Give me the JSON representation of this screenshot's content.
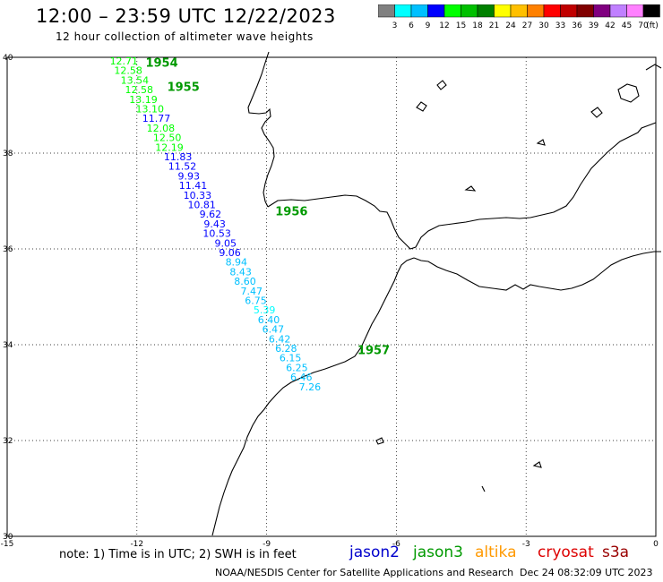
{
  "header": {
    "title": "12:00 – 23:59 UTC 12/22/2023",
    "subtitle": "12 hour collection of altimeter wave heights"
  },
  "colorbar": {
    "colors": [
      "#808080",
      "#00ffff",
      "#00c0ff",
      "#0000ff",
      "#00ff00",
      "#00c000",
      "#008000",
      "#ffff00",
      "#ffc000",
      "#ff8000",
      "#ff0000",
      "#c00000",
      "#800000",
      "#800080",
      "#c080ff",
      "#ff80ff",
      "#000000"
    ],
    "labels": [
      "3",
      "6",
      "9",
      "12",
      "15",
      "18",
      "21",
      "24",
      "27",
      "30",
      "33",
      "36",
      "39",
      "42",
      "45",
      "70"
    ],
    "unit": "(ft)"
  },
  "map": {
    "lon_range": [
      -15,
      0
    ],
    "lat_range": [
      30,
      40
    ],
    "lon_ticks": [
      "-15",
      "-12",
      "-9",
      "-6",
      "-3",
      "0"
    ],
    "lat_ticks": [
      "30",
      "32",
      "34",
      "36",
      "38",
      "40"
    ],
    "time_labels": [
      {
        "text": "1954",
        "lon": -11.8,
        "lat": 39.8
      },
      {
        "text": "1955",
        "lon": -11.3,
        "lat": 39.3
      },
      {
        "text": "1956",
        "lon": -8.8,
        "lat": 36.7
      },
      {
        "text": "1957",
        "lon": -6.9,
        "lat": 33.8
      }
    ],
    "points": [
      {
        "v": "12.71",
        "lon": -12.3,
        "lat": 39.85
      },
      {
        "v": "12.58",
        "lon": -12.2,
        "lat": 39.65
      },
      {
        "v": "13.54",
        "lon": -12.05,
        "lat": 39.45
      },
      {
        "v": "12.58",
        "lon": -11.95,
        "lat": 39.25
      },
      {
        "v": "13.19",
        "lon": -11.85,
        "lat": 39.05
      },
      {
        "v": "13.10",
        "lon": -11.7,
        "lat": 38.85
      },
      {
        "v": "11.77",
        "lon": -11.55,
        "lat": 38.65
      },
      {
        "v": "12.08",
        "lon": -11.45,
        "lat": 38.45
      },
      {
        "v": "12.50",
        "lon": -11.3,
        "lat": 38.25
      },
      {
        "v": "12.19",
        "lon": -11.25,
        "lat": 38.05
      },
      {
        "v": "11.83",
        "lon": -11.05,
        "lat": 37.85
      },
      {
        "v": "11.52",
        "lon": -10.95,
        "lat": 37.65
      },
      {
        "v": "9.93",
        "lon": -10.8,
        "lat": 37.45
      },
      {
        "v": "11.41",
        "lon": -10.7,
        "lat": 37.25
      },
      {
        "v": "10.33",
        "lon": -10.6,
        "lat": 37.05
      },
      {
        "v": "10.81",
        "lon": -10.5,
        "lat": 36.85
      },
      {
        "v": "9.62",
        "lon": -10.3,
        "lat": 36.65
      },
      {
        "v": "9.43",
        "lon": -10.2,
        "lat": 36.45
      },
      {
        "v": "10.53",
        "lon": -10.15,
        "lat": 36.25
      },
      {
        "v": "9.05",
        "lon": -9.95,
        "lat": 36.05
      },
      {
        "v": "9.06",
        "lon": -9.85,
        "lat": 35.85
      },
      {
        "v": "8.94",
        "lon": -9.7,
        "lat": 35.65
      },
      {
        "v": "8.43",
        "lon": -9.6,
        "lat": 35.45
      },
      {
        "v": "8.60",
        "lon": -9.5,
        "lat": 35.25
      },
      {
        "v": "7.47",
        "lon": -9.35,
        "lat": 35.05
      },
      {
        "v": "6.75",
        "lon": -9.25,
        "lat": 34.85
      },
      {
        "v": "5.39",
        "lon": -9.05,
        "lat": 34.65
      },
      {
        "v": "6.40",
        "lon": -8.95,
        "lat": 34.45
      },
      {
        "v": "6.47",
        "lon": -8.85,
        "lat": 34.25
      },
      {
        "v": "6.42",
        "lon": -8.7,
        "lat": 34.05
      },
      {
        "v": "6.28",
        "lon": -8.55,
        "lat": 33.85
      },
      {
        "v": "6.15",
        "lon": -8.45,
        "lat": 33.65
      },
      {
        "v": "6.25",
        "lon": -8.3,
        "lat": 33.45
      },
      {
        "v": "6.46",
        "lon": -8.2,
        "lat": 33.25
      },
      {
        "v": "7.26",
        "lon": -8.0,
        "lat": 33.05
      }
    ]
  },
  "footer": {
    "note": "note:  1) Time is in UTC;  2) SWH is in feet",
    "missions": [
      {
        "name": "jason2",
        "color": "#0000cc"
      },
      {
        "name": "jason3",
        "color": "#009900"
      },
      {
        "name": "altika",
        "color": "#ff9900"
      },
      {
        "name": "cryosat",
        "color": "#dd0000"
      },
      {
        "name": "s3a",
        "color": "#990000"
      }
    ],
    "credit": "NOAA/NESDIS Center for Satellite Applications and Research",
    "timestamp": "Dec 24 08:32:09 UTC 2023"
  }
}
